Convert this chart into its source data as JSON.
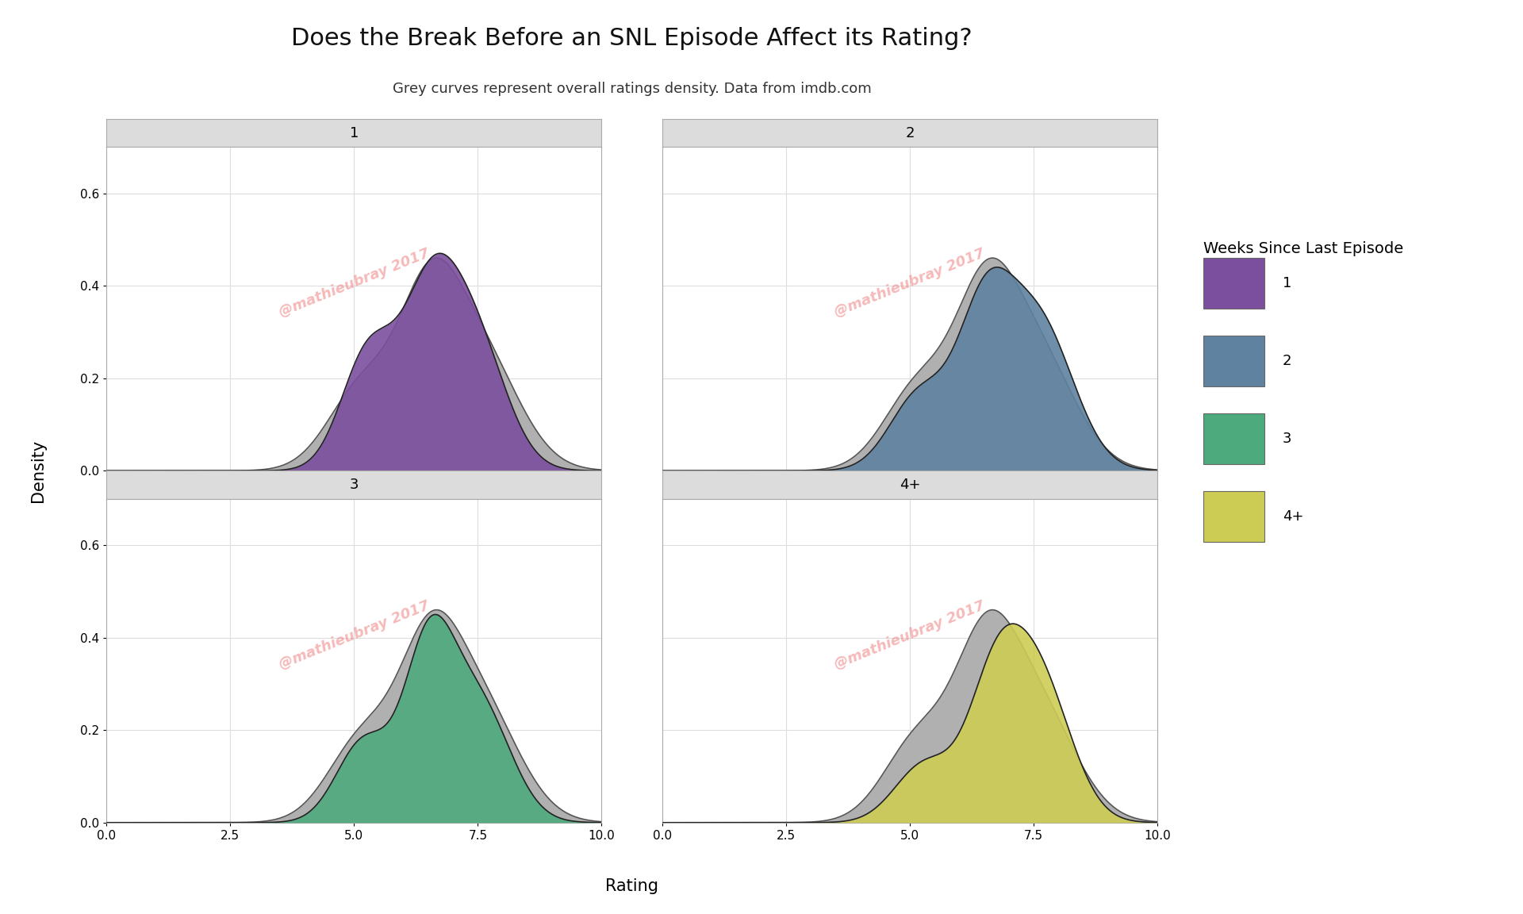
{
  "title": "Does the Break Before an SNL Episode Affect its Rating?",
  "subtitle": "Grey curves represent overall ratings density. Data from imdb.com",
  "xlabel": "Rating",
  "ylabel": "Density",
  "panel_labels": [
    "1",
    "2",
    "3",
    "4+"
  ],
  "legend_title": "Weeks Since Last Episode",
  "legend_labels": [
    "1",
    "2",
    "3",
    "4+"
  ],
  "colors": {
    "1": "#7B4F9E",
    "2": "#5E82A0",
    "3": "#4DAA7D",
    "4+": "#CCCC55",
    "grey": "#B0B0B0"
  },
  "watermark": "@mathieubray 2017",
  "xlim": [
    0.0,
    10.0
  ],
  "ylim": [
    0.0,
    0.7
  ],
  "yticks": [
    0.0,
    0.2,
    0.4,
    0.6
  ],
  "xticks": [
    0.0,
    2.5,
    5.0,
    7.5,
    10.0
  ],
  "background_color": "#FFFFFF",
  "panel_header_color": "#DCDCDC",
  "grid_color": "#DDDDDD",
  "overall_kde_params": {
    "components": [
      {
        "mean": 5.2,
        "std": 0.7,
        "weight": 0.25
      },
      {
        "mean": 6.5,
        "std": 0.6,
        "weight": 0.35
      },
      {
        "mean": 7.5,
        "std": 0.8,
        "weight": 0.4
      }
    ],
    "peak": 0.46
  },
  "group_kde_params": {
    "1": {
      "components": [
        {
          "mean": 5.3,
          "std": 0.55,
          "weight": 0.28
        },
        {
          "mean": 6.5,
          "std": 0.55,
          "weight": 0.35
        },
        {
          "mean": 7.4,
          "std": 0.65,
          "weight": 0.37
        }
      ],
      "peak": 0.47
    },
    "2": {
      "components": [
        {
          "mean": 5.2,
          "std": 0.6,
          "weight": 0.2
        },
        {
          "mean": 6.5,
          "std": 0.55,
          "weight": 0.35
        },
        {
          "mean": 7.6,
          "std": 0.7,
          "weight": 0.45
        }
      ],
      "peak": 0.44
    },
    "3": {
      "components": [
        {
          "mean": 5.2,
          "std": 0.55,
          "weight": 0.22
        },
        {
          "mean": 6.5,
          "std": 0.5,
          "weight": 0.4
        },
        {
          "mean": 7.5,
          "std": 0.65,
          "weight": 0.38
        }
      ],
      "peak": 0.45
    },
    "4+": {
      "components": [
        {
          "mean": 5.3,
          "std": 0.6,
          "weight": 0.18
        },
        {
          "mean": 6.7,
          "std": 0.55,
          "weight": 0.35
        },
        {
          "mean": 7.6,
          "std": 0.65,
          "weight": 0.47
        }
      ],
      "peak": 0.43
    }
  }
}
